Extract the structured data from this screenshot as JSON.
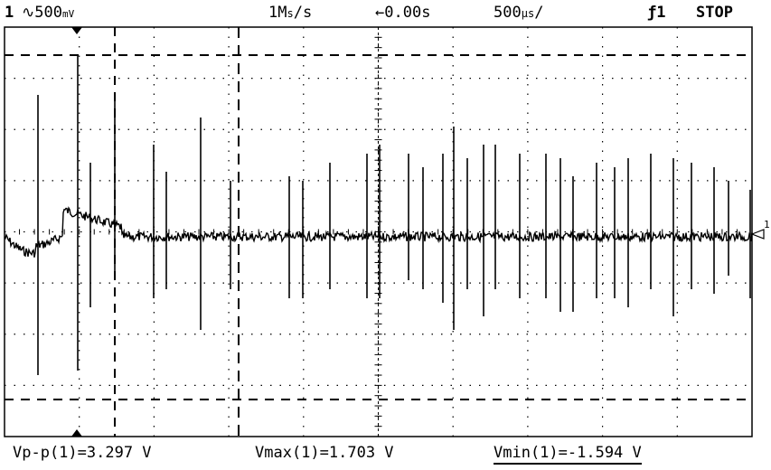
{
  "header": {
    "channel": "1",
    "vertical_scale": "500",
    "sample_rate": "1M",
    "sample_rate_unit": "s",
    "delay": "0.00s",
    "time_per_div": "500",
    "time_unit": "s",
    "trigger_source": "1",
    "run_state": "STOP"
  },
  "footer": {
    "vpp": "Vp-p(1)=3.297 V",
    "vmax": "Vmax(1)=1.703 V",
    "vmin": "Vmin(1)=-1.594 V"
  },
  "markers": {
    "right_channel": "1"
  },
  "colors": {
    "trace": "#000000",
    "background": "#ffffff"
  }
}
